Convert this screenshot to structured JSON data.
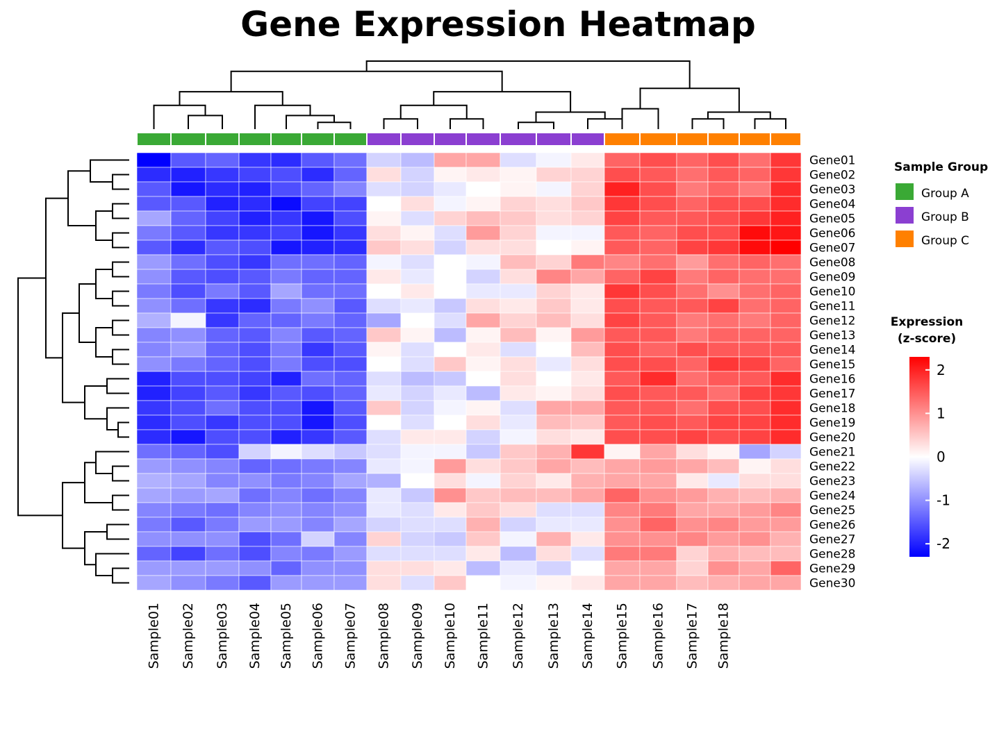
{
  "chart_data": {
    "type": "heatmap",
    "title": "Gene Expression Heatmap",
    "samples": [
      "Sample01",
      "Sample02",
      "Sample03",
      "Sample04",
      "Sample05",
      "Sample06",
      "Sample07",
      "Sample08",
      "Sample09",
      "Sample10",
      "Sample11",
      "Sample12",
      "Sample13",
      "Sample14",
      "Sample15",
      "Sample16",
      "Sample17",
      "Sample18",
      "",
      ""
    ],
    "genes": [
      "Gene01",
      "Gene02",
      "Gene03",
      "Gene04",
      "Gene05",
      "Gene06",
      "Gene07",
      "Gene08",
      "Gene09",
      "Gene10",
      "Gene11",
      "Gene12",
      "Gene13",
      "Gene14",
      "Gene15",
      "Gene16",
      "Gene17",
      "Gene18",
      "Gene19",
      "Gene20",
      "Gene21",
      "Gene22",
      "Gene23",
      "Gene24",
      "Gene25",
      "Gene26",
      "Gene27",
      "Gene28",
      "Gene29",
      "Gene30"
    ],
    "column_groups": [
      "Group A",
      "Group A",
      "Group A",
      "Group A",
      "Group A",
      "Group A",
      "Group A",
      "Group B",
      "Group B",
      "Group B",
      "Group B",
      "Group B",
      "Group B",
      "Group B",
      "Group C",
      "Group C",
      "Group C",
      "Group C",
      "Group C",
      "Group C"
    ],
    "values": [
      [
        -2.3,
        -1.5,
        -1.4,
        -1.8,
        -1.9,
        -1.5,
        -1.3,
        -0.4,
        -0.6,
        0.8,
        0.8,
        -0.3,
        -0.1,
        0.2,
        1.4,
        1.6,
        1.4,
        1.6,
        1.3,
        1.8
      ],
      [
        -1.9,
        -2.0,
        -1.8,
        -1.7,
        -1.6,
        -1.9,
        -1.4,
        0.3,
        -0.4,
        0.1,
        0.2,
        0.1,
        0.4,
        0.4,
        1.6,
        1.5,
        1.3,
        1.5,
        1.4,
        1.8
      ],
      [
        -1.5,
        -2.1,
        -1.9,
        -2.0,
        -1.6,
        -1.4,
        -1.1,
        -0.3,
        -0.4,
        -0.2,
        0.0,
        0.1,
        -0.1,
        0.4,
        2.0,
        1.6,
        1.2,
        1.4,
        1.2,
        1.9
      ],
      [
        -1.5,
        -1.5,
        -2.0,
        -1.9,
        -2.2,
        -1.7,
        -1.7,
        0.0,
        0.3,
        -0.1,
        0.1,
        0.4,
        0.3,
        0.5,
        1.8,
        1.6,
        1.4,
        1.6,
        1.6,
        1.9
      ],
      [
        -0.8,
        -1.4,
        -1.7,
        -2.0,
        -1.8,
        -2.1,
        -1.6,
        0.1,
        -0.3,
        0.4,
        0.6,
        0.5,
        0.3,
        0.4,
        1.7,
        1.5,
        1.5,
        1.6,
        1.8,
        2.0
      ],
      [
        -1.2,
        -1.5,
        -1.8,
        -1.8,
        -1.7,
        -2.1,
        -1.8,
        0.3,
        0.1,
        -0.3,
        0.9,
        0.4,
        -0.1,
        -0.1,
        1.5,
        1.4,
        1.6,
        1.6,
        2.2,
        2.1
      ],
      [
        -1.5,
        -1.9,
        -1.5,
        -1.6,
        -2.1,
        -2.0,
        -1.9,
        0.5,
        0.3,
        -0.4,
        0.3,
        0.3,
        0.0,
        0.1,
        1.5,
        1.4,
        1.7,
        1.8,
        2.2,
        2.3
      ],
      [
        -0.9,
        -1.3,
        -1.6,
        -1.8,
        -1.3,
        -1.3,
        -1.4,
        -0.1,
        -0.3,
        0.0,
        -0.1,
        0.6,
        0.4,
        1.2,
        1.1,
        1.3,
        0.9,
        1.3,
        1.4,
        1.3
      ],
      [
        -1.0,
        -1.5,
        -1.6,
        -1.5,
        -1.2,
        -1.4,
        -1.4,
        0.2,
        -0.2,
        0.0,
        -0.4,
        0.3,
        1.1,
        0.8,
        1.4,
        1.7,
        1.2,
        1.4,
        1.3,
        1.3
      ],
      [
        -1.2,
        -1.6,
        -1.2,
        -1.5,
        -0.8,
        -1.3,
        -1.3,
        0.0,
        0.2,
        0.0,
        -0.2,
        -0.2,
        0.4,
        0.2,
        1.8,
        1.6,
        1.3,
        1.0,
        1.3,
        1.4
      ],
      [
        -1.0,
        -1.3,
        -1.8,
        -1.9,
        -1.2,
        -1.0,
        -1.5,
        -0.3,
        -0.2,
        -0.5,
        0.3,
        0.2,
        0.5,
        0.2,
        1.6,
        1.5,
        1.5,
        1.7,
        1.3,
        1.4
      ],
      [
        -0.7,
        -0.1,
        -1.8,
        -1.4,
        -1.4,
        -1.2,
        -1.4,
        -0.8,
        0.0,
        -0.3,
        0.8,
        0.4,
        0.6,
        0.3,
        1.7,
        1.5,
        1.2,
        1.3,
        1.2,
        1.4
      ],
      [
        -1.1,
        -1.0,
        -1.4,
        -1.5,
        -1.1,
        -1.5,
        -1.4,
        0.5,
        0.1,
        -0.6,
        0.1,
        0.6,
        0.1,
        0.9,
        1.5,
        1.5,
        1.2,
        1.4,
        1.4,
        1.4
      ],
      [
        -1.1,
        -0.9,
        -1.4,
        -1.6,
        -1.2,
        -1.8,
        -1.5,
        0.1,
        -0.3,
        0.0,
        0.2,
        -0.3,
        0.0,
        0.6,
        1.6,
        1.4,
        1.6,
        1.5,
        1.5,
        1.5
      ],
      [
        -1.0,
        -1.2,
        -1.4,
        -1.6,
        -1.2,
        -1.6,
        -1.6,
        0.0,
        -0.3,
        0.5,
        0.1,
        0.3,
        -0.2,
        0.3,
        1.6,
        1.6,
        1.4,
        1.8,
        1.7,
        1.4
      ],
      [
        -2.0,
        -1.6,
        -1.6,
        -1.7,
        -2.0,
        -1.3,
        -1.4,
        -0.3,
        -0.6,
        -0.5,
        0.0,
        0.3,
        0.0,
        0.2,
        1.5,
        1.9,
        1.3,
        1.5,
        1.5,
        1.9
      ],
      [
        -2.0,
        -1.7,
        -1.5,
        -1.8,
        -1.5,
        -1.6,
        -1.4,
        -0.2,
        -0.4,
        -0.2,
        -0.6,
        0.2,
        0.1,
        0.3,
        1.6,
        1.5,
        1.5,
        1.3,
        1.7,
        1.8
      ],
      [
        -1.8,
        -1.6,
        -1.3,
        -1.6,
        -1.6,
        -2.1,
        -1.5,
        0.5,
        -0.4,
        -0.1,
        0.1,
        -0.3,
        0.8,
        0.8,
        1.5,
        1.5,
        1.3,
        1.6,
        1.6,
        1.9
      ],
      [
        -1.9,
        -1.6,
        -1.8,
        -1.6,
        -1.6,
        -2.1,
        -1.6,
        0.0,
        -0.3,
        0.0,
        0.3,
        -0.2,
        0.6,
        0.5,
        1.5,
        1.6,
        1.5,
        1.7,
        1.7,
        1.9
      ],
      [
        -1.9,
        -2.1,
        -1.6,
        -1.6,
        -2.0,
        -1.8,
        -1.5,
        -0.3,
        0.2,
        0.2,
        -0.4,
        -0.1,
        0.3,
        0.2,
        1.6,
        1.6,
        1.7,
        1.6,
        1.7,
        1.9
      ],
      [
        -1.3,
        -1.4,
        -1.6,
        -0.4,
        -0.1,
        -0.3,
        -0.5,
        -0.3,
        -0.1,
        -0.1,
        -0.5,
        0.5,
        0.7,
        1.8,
        0.1,
        0.8,
        0.3,
        0.1,
        -0.8,
        -0.4
      ],
      [
        -0.9,
        -1.0,
        -1.1,
        -1.4,
        -1.3,
        -1.2,
        -1.1,
        -0.2,
        -0.1,
        0.9,
        0.3,
        0.5,
        0.8,
        0.6,
        0.8,
        0.9,
        0.8,
        0.6,
        0.1,
        0.3
      ],
      [
        -0.7,
        -0.8,
        -1.1,
        -1.0,
        -1.2,
        -1.1,
        -0.8,
        -0.7,
        0.0,
        0.3,
        -0.1,
        0.4,
        0.2,
        0.7,
        0.8,
        0.8,
        0.2,
        -0.2,
        0.3,
        0.3
      ],
      [
        -0.8,
        -0.9,
        -0.8,
        -1.3,
        -1.1,
        -1.3,
        -1.1,
        -0.2,
        -0.5,
        1.0,
        0.5,
        0.6,
        0.6,
        0.8,
        1.4,
        1.0,
        0.9,
        0.7,
        0.6,
        0.7
      ],
      [
        -1.1,
        -1.2,
        -1.3,
        -1.1,
        -1.0,
        -1.1,
        -1.0,
        -0.2,
        -0.3,
        0.2,
        0.5,
        0.3,
        -0.3,
        -0.3,
        1.1,
        1.2,
        0.8,
        0.8,
        0.9,
        1.1
      ],
      [
        -1.2,
        -1.5,
        -1.2,
        -0.9,
        -0.9,
        -1.1,
        -0.8,
        -0.4,
        -0.3,
        -0.3,
        0.7,
        -0.4,
        -0.2,
        -0.2,
        1.0,
        1.4,
        1.0,
        1.1,
        0.9,
        0.9
      ],
      [
        -1.0,
        -1.0,
        -1.0,
        -1.6,
        -1.3,
        -0.4,
        -1.1,
        0.4,
        -0.4,
        -0.5,
        0.5,
        -0.1,
        0.7,
        0.2,
        1.0,
        1.0,
        1.1,
        0.9,
        1.0,
        0.7
      ],
      [
        -1.4,
        -1.7,
        -1.3,
        -1.6,
        -1.1,
        -1.2,
        -0.9,
        -0.3,
        -0.3,
        -0.3,
        0.2,
        -0.6,
        0.3,
        -0.3,
        1.2,
        1.2,
        0.4,
        0.7,
        0.6,
        0.6
      ],
      [
        -0.9,
        -0.9,
        -0.9,
        -1.0,
        -1.4,
        -1.0,
        -1.0,
        0.3,
        0.3,
        0.2,
        -0.6,
        -0.2,
        -0.4,
        0.0,
        0.8,
        0.8,
        0.4,
        1.0,
        0.8,
        1.4
      ],
      [
        -0.8,
        -1.0,
        -1.2,
        -1.5,
        -0.9,
        -0.9,
        -0.9,
        0.3,
        -0.3,
        0.5,
        0.0,
        -0.1,
        0.1,
        0.2,
        0.8,
        0.8,
        0.6,
        0.7,
        0.8,
        0.8
      ]
    ],
    "color_scale": {
      "low": "#0000ff",
      "mid": "#ffffff",
      "high": "#ff0000",
      "range": [
        -2.3,
        2.3
      ]
    },
    "colorbar_ticks": [
      2,
      1,
      0,
      -1,
      -2
    ],
    "column_dendrogram": true,
    "row_dendrogram": true
  },
  "legend": {
    "group_title": "Sample Group",
    "groups": [
      {
        "name": "Group A",
        "color": "#3aa935"
      },
      {
        "name": "Group B",
        "color": "#8b3fd1"
      },
      {
        "name": "Group C",
        "color": "#ff8000"
      }
    ],
    "expression_title_1": "Expression",
    "expression_title_2": "(z-score)"
  }
}
